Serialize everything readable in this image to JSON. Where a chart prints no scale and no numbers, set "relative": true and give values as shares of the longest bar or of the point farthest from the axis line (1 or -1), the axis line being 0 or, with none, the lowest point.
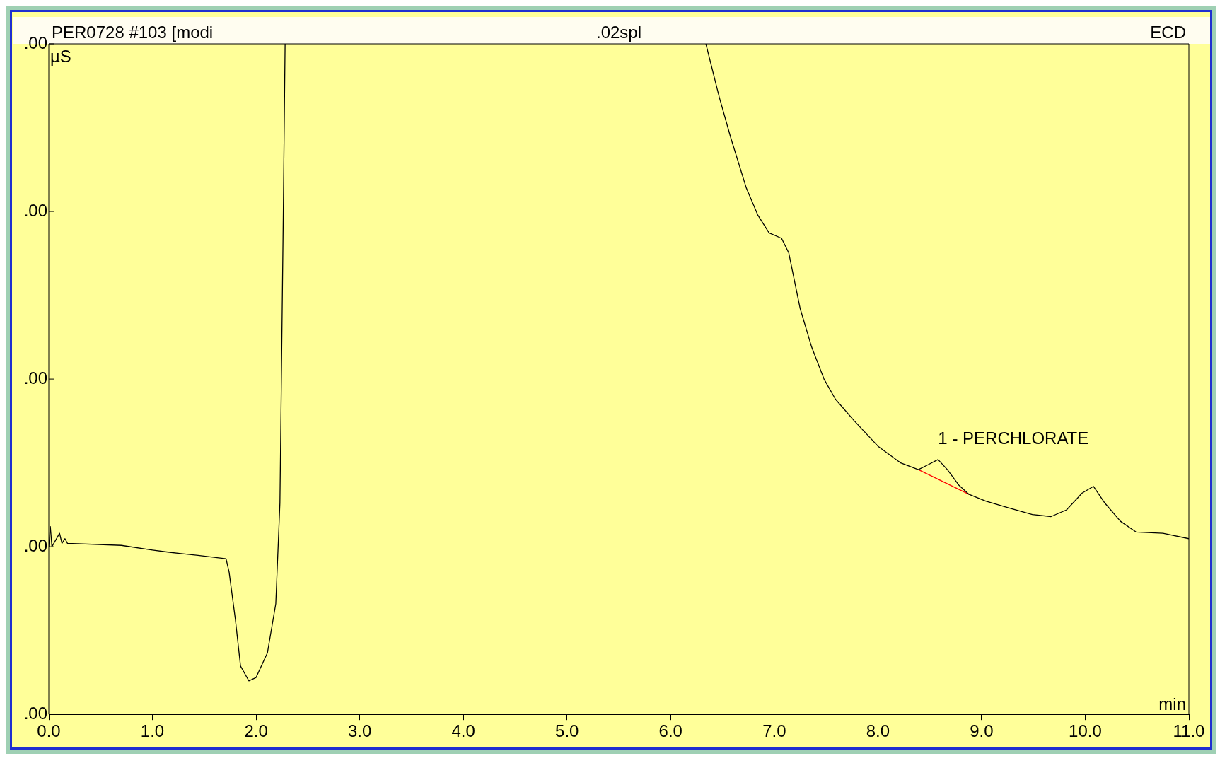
{
  "chart_data": {
    "type": "line",
    "title": "PER0728 #103 [modi",
    "ylabel": "µS",
    "xlabel": "min",
    "relative": true,
    "annotations": [
      ".02spl",
      "ECD",
      {
        "text": "1 - PERCHLORATE",
        "x": 8.58,
        "y": 0.38
      },
      ".00",
      ".00",
      ".00",
      ".00",
      ".00"
    ],
    "xlim": [
      0,
      11
    ],
    "xticks": [
      {
        "value": 0,
        "label": "0.0"
      },
      {
        "value": 1,
        "label": "1.0"
      },
      {
        "value": 2,
        "label": "2.0"
      },
      {
        "value": 3,
        "label": "3.0"
      },
      {
        "value": 4,
        "label": "4.0"
      },
      {
        "value": 5,
        "label": "5.0"
      },
      {
        "value": 6,
        "label": "6.0"
      },
      {
        "value": 7,
        "label": "7.0"
      },
      {
        "value": 8,
        "label": "8.0"
      },
      {
        "value": 9,
        "label": "9.0"
      },
      {
        "value": 10,
        "label": "10.0"
      },
      {
        "value": 11,
        "label": "11.0"
      }
    ],
    "grid": false,
    "legend": false,
    "marker": "none",
    "line_style": "solid",
    "series": [
      {
        "color": "#000000",
        "x": [
          0,
          0.015,
          0.03,
          0.104,
          0.127,
          0.156,
          0.18,
          0.7,
          1.0,
          1.15,
          1.44,
          1.71,
          1.74,
          1.8,
          1.85,
          1.93,
          2.0,
          2.11,
          2.19,
          2.23,
          2.26,
          2.28,
          4.3,
          6.34,
          6.47,
          6.58,
          6.73,
          6.84,
          6.95,
          7.07,
          7.14,
          7.25,
          7.36,
          7.48,
          7.59,
          7.77,
          8.0,
          8.22,
          8.39,
          8.48,
          8.58,
          8.67,
          8.78,
          8.88,
          9.04,
          9.26,
          9.49,
          9.67,
          9.82,
          9.97,
          10.08,
          10.19,
          10.34,
          10.49,
          10.75,
          11.0
        ],
        "values": [
          0.25,
          0.28,
          0.25,
          0.27,
          0.255,
          0.262,
          0.255,
          0.252,
          0.245,
          0.242,
          0.237,
          0.232,
          0.212,
          0.142,
          0.072,
          0.05,
          0.055,
          0.092,
          0.165,
          0.315,
          0.71,
          1.0,
          null,
          1.0,
          0.92,
          0.86,
          0.785,
          0.745,
          0.718,
          0.71,
          0.688,
          0.605,
          0.548,
          0.5,
          0.47,
          0.438,
          0.4,
          0.375,
          0.365,
          0.372,
          0.38,
          0.365,
          0.342,
          0.328,
          0.318,
          0.308,
          0.298,
          0.295,
          0.305,
          0.33,
          0.34,
          0.315,
          0.288,
          0.272,
          0.27,
          0.262
        ]
      },
      {
        "color": "#ff0000",
        "x": [
          8.39,
          8.88
        ],
        "values": [
          0.365,
          0.328
        ]
      }
    ]
  }
}
